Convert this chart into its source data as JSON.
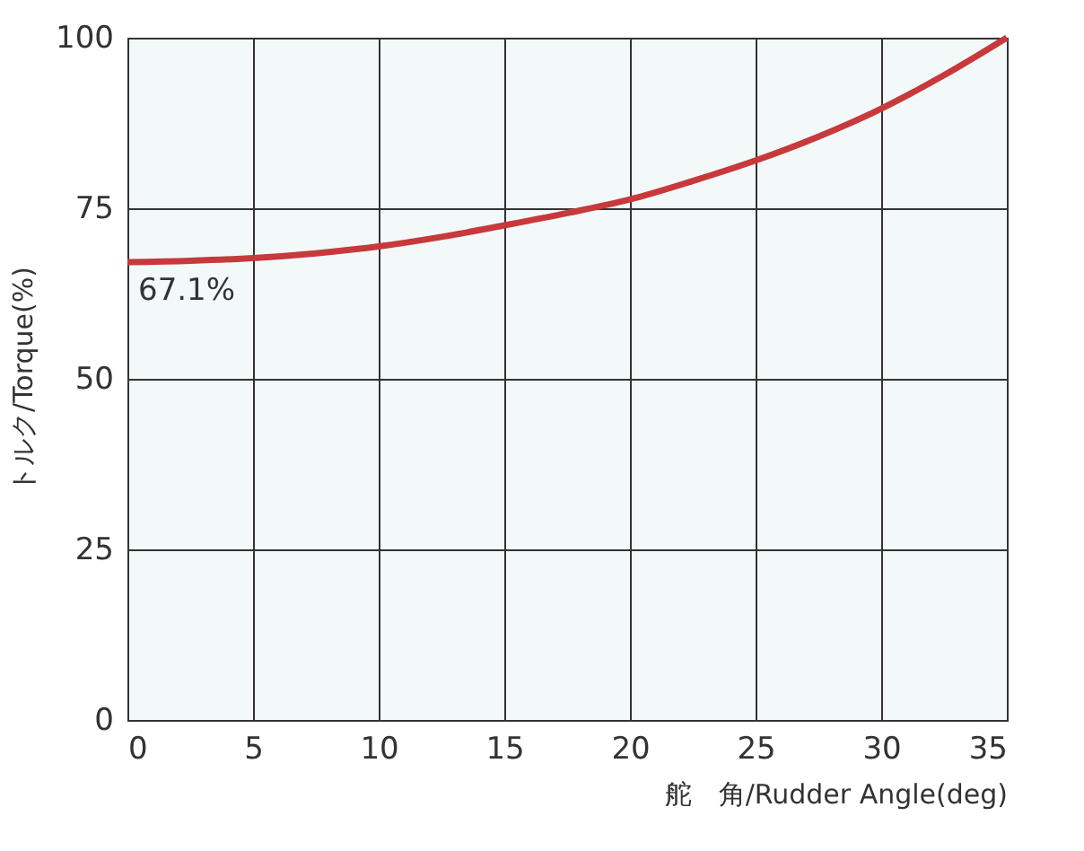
{
  "chart_data": {
    "type": "line",
    "xlabel": "舵　角/Rudder Angle(deg)",
    "ylabel": "トルク/Torque(%)",
    "x": [
      0,
      2.5,
      5,
      7.5,
      10,
      12.5,
      15,
      17.5,
      20,
      22.5,
      25,
      27.5,
      30,
      32.5,
      35
    ],
    "series": [
      {
        "color": "#c8393b",
        "values": [
          67.1,
          67.3,
          67.7,
          68.4,
          69.4,
          70.8,
          72.5,
          74.3,
          76.3,
          79,
          82,
          85.5,
          89.6,
          94.5,
          100
        ]
      }
    ],
    "xlim": [
      0,
      35
    ],
    "xticks": [
      0,
      5,
      10,
      15,
      20,
      25,
      30,
      35
    ],
    "ylim": [
      0,
      100
    ],
    "yticks": [
      0,
      25,
      50,
      75,
      100
    ],
    "annotations": [
      {
        "text": "67.1%",
        "x": 0,
        "y": 67.1
      }
    ],
    "grid": true,
    "marker": "none",
    "line_style": "solid"
  }
}
